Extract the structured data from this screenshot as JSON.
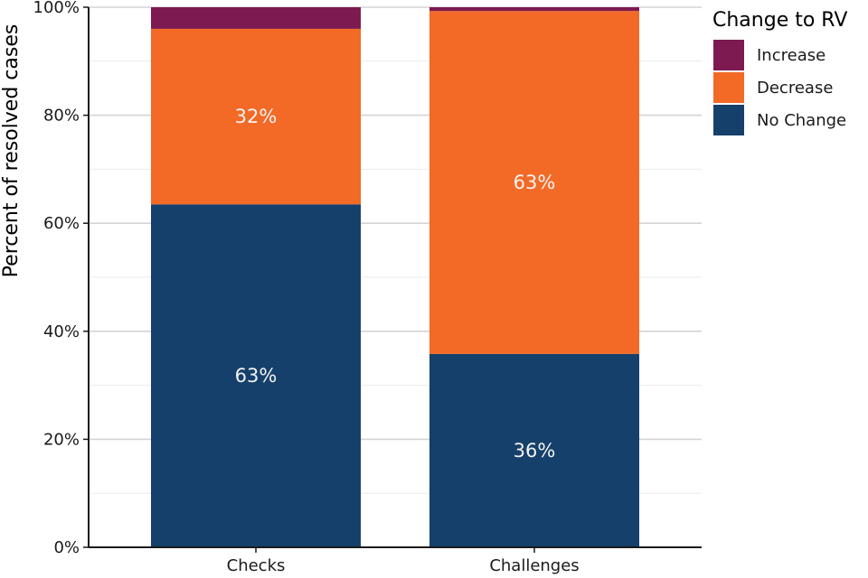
{
  "chart_data": {
    "type": "bar",
    "stacked": true,
    "categories": [
      "Checks",
      "Challenges"
    ],
    "series": [
      {
        "name": "No Change",
        "values": [
          63.5,
          35.8
        ],
        "color": "#15406b",
        "labels": [
          "63%",
          "36%"
        ]
      },
      {
        "name": "Decrease",
        "values": [
          32.5,
          63.5
        ],
        "color": "#f26a26",
        "labels": [
          "32%",
          "63%"
        ]
      },
      {
        "name": "Increase",
        "values": [
          4.0,
          0.7
        ],
        "color": "#7d1a51",
        "labels": [
          "",
          ""
        ]
      }
    ],
    "ylabel": "Percent of resolved cases",
    "xlabel": "",
    "ylim": [
      0,
      100
    ],
    "yticks": [
      0,
      20,
      40,
      60,
      80,
      100
    ],
    "ytick_labels": [
      "0%",
      "20%",
      "40%",
      "60%",
      "80%",
      "100%"
    ],
    "grid": true,
    "legend": {
      "title": "Change to RV",
      "placement": "right",
      "order": [
        "Increase",
        "Decrease",
        "No Change"
      ]
    }
  }
}
